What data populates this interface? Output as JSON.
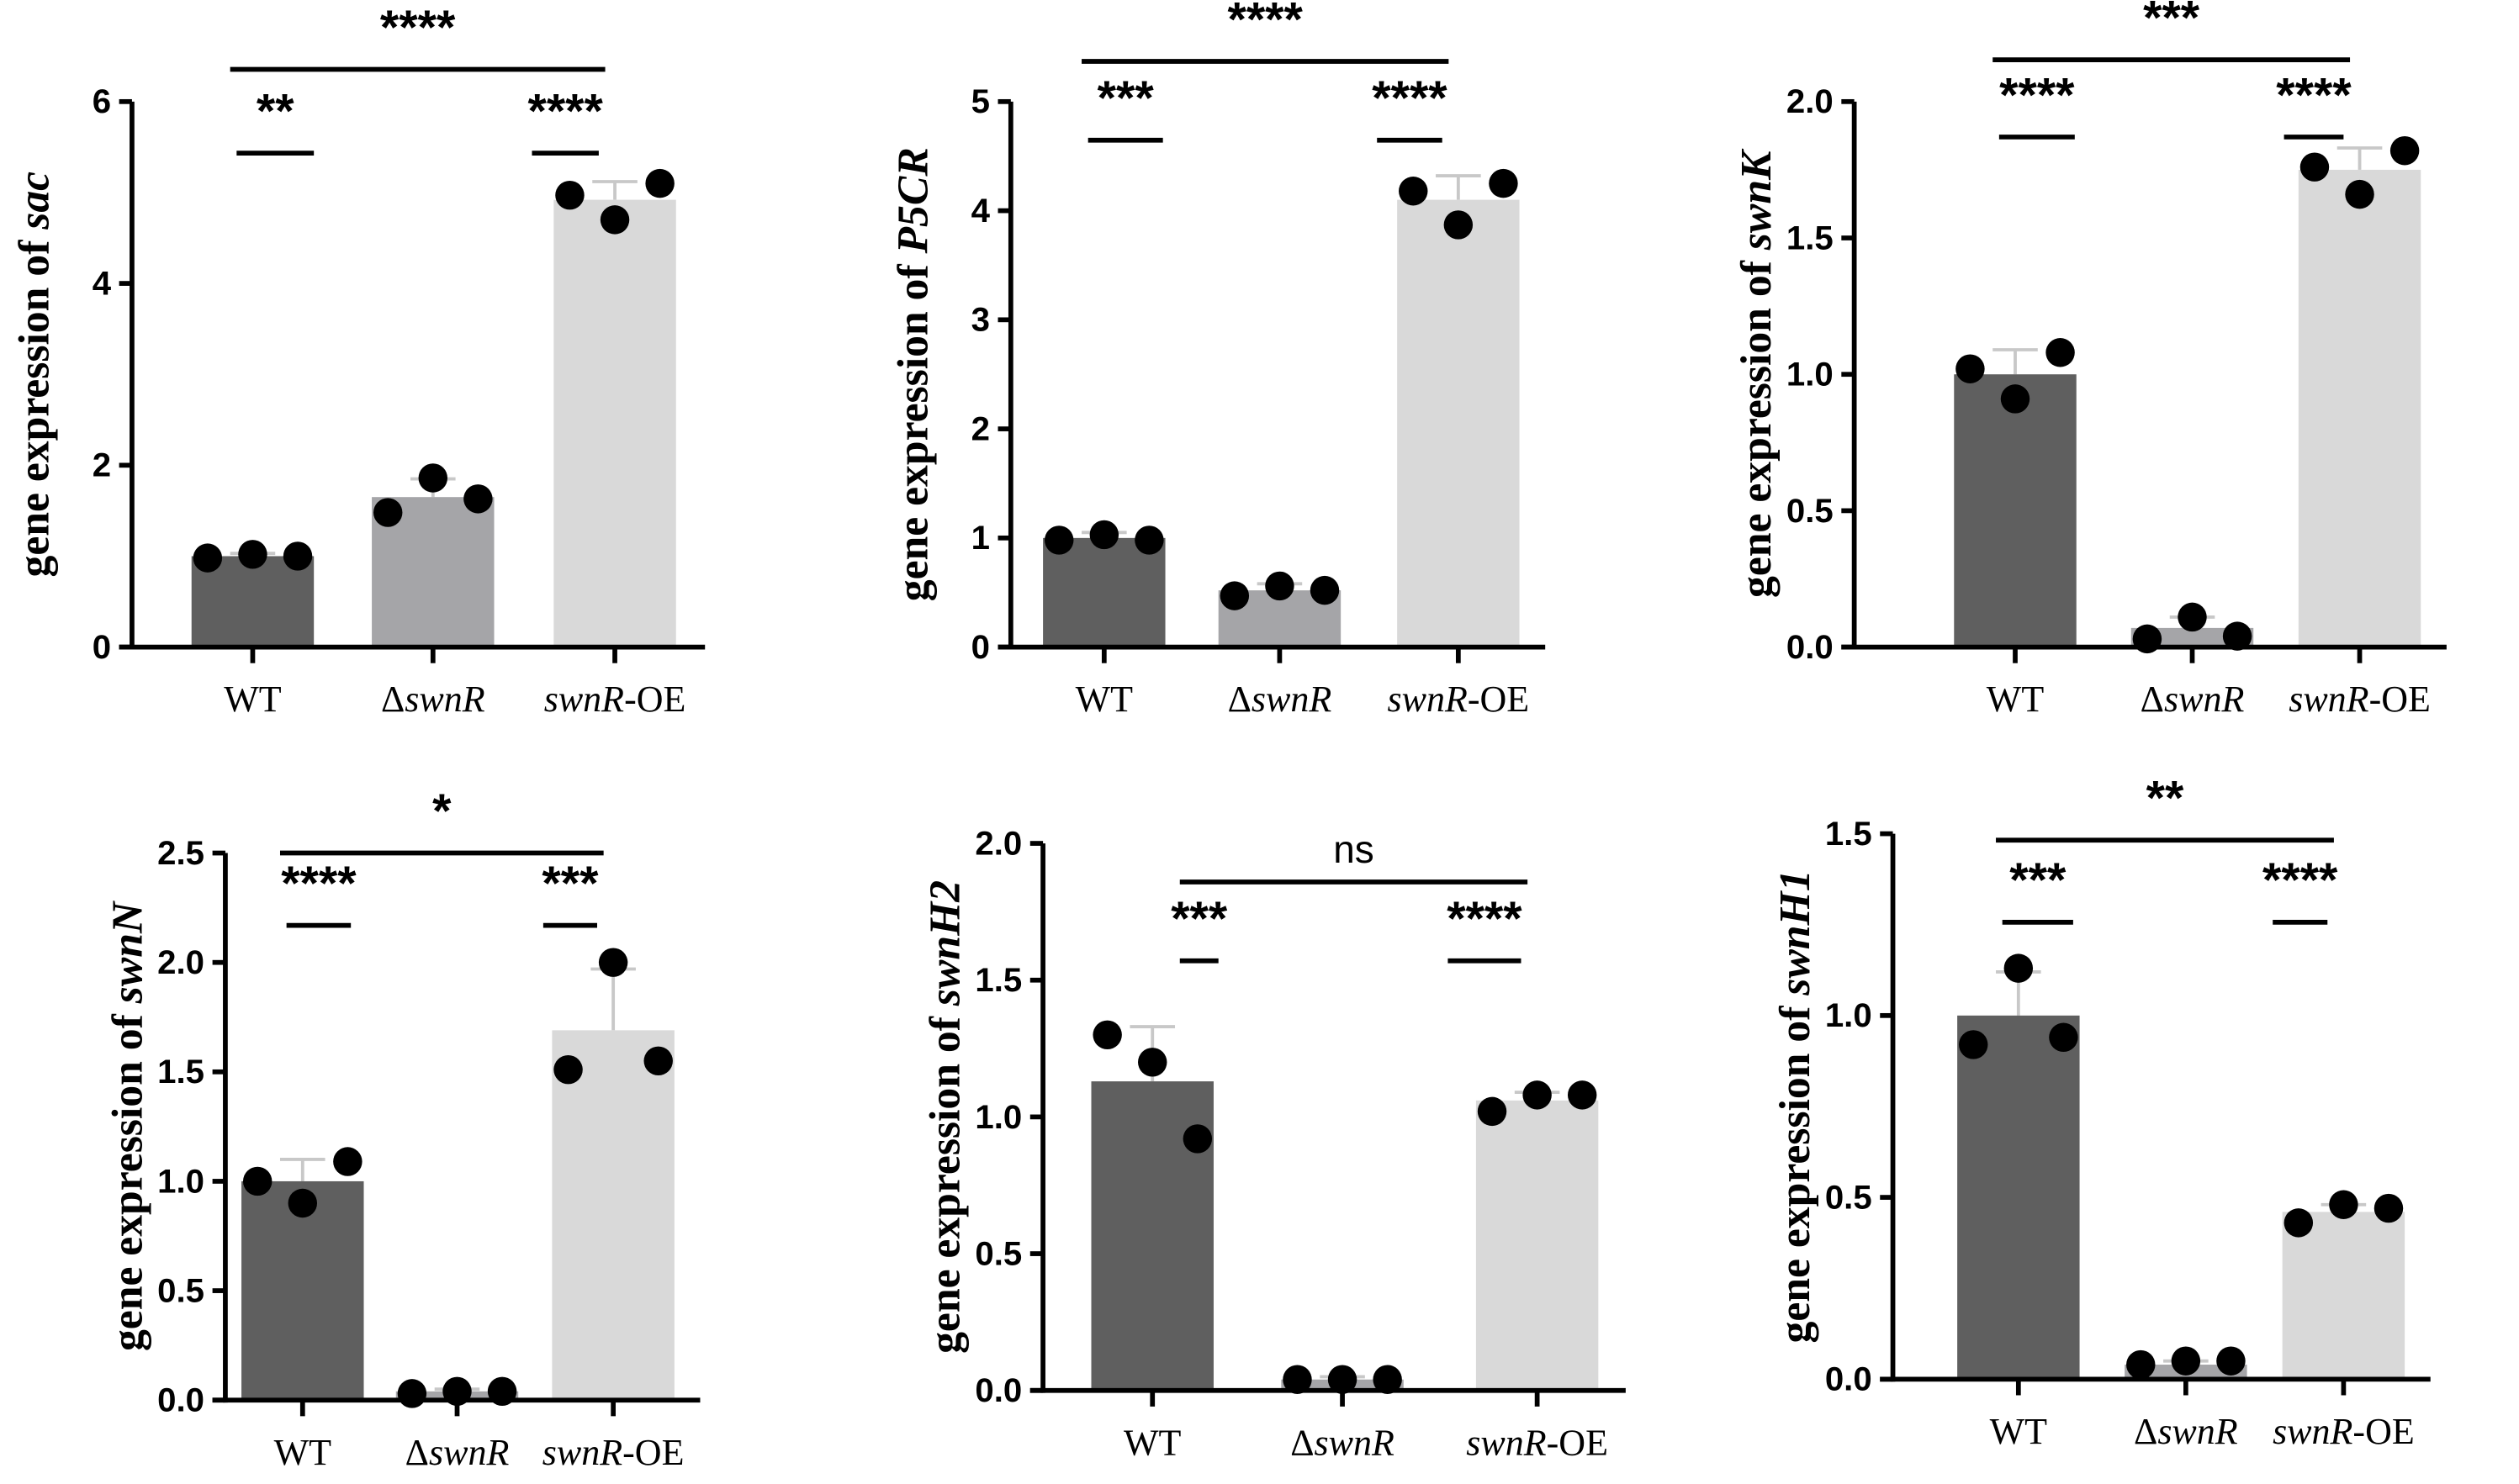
{
  "chart_data": [
    {
      "type": "bar",
      "gene": "sac",
      "ylabel_prefix": "gene expression of ",
      "ylim": [
        0,
        6
      ],
      "yticks": [
        0,
        2,
        4,
        6
      ],
      "categories": [
        "WT",
        "ΔswnR",
        "swnR-OE"
      ],
      "values": [
        1.0,
        1.65,
        4.92
      ],
      "error_upper": [
        1.03,
        1.85,
        5.12
      ],
      "points": [
        [
          0.98,
          1.02,
          1.0
        ],
        [
          1.48,
          1.86,
          1.63
        ],
        [
          4.97,
          4.7,
          5.1
        ]
      ],
      "significance": [
        {
          "pair": [
            0,
            1
          ],
          "label": "**"
        },
        {
          "pair": [
            1,
            2
          ],
          "label": "****"
        },
        {
          "pair": [
            0,
            2
          ],
          "label": "****"
        }
      ]
    },
    {
      "type": "bar",
      "gene": "P5CR",
      "ylabel_prefix": "gene expression of ",
      "ylim": [
        0,
        5
      ],
      "yticks": [
        0,
        1,
        2,
        3,
        4,
        5
      ],
      "categories": [
        "WT",
        "ΔswnR",
        "swnR-OE"
      ],
      "values": [
        1.0,
        0.52,
        4.1
      ],
      "error_upper": [
        1.05,
        0.58,
        4.32
      ],
      "points": [
        [
          0.98,
          1.03,
          0.98
        ],
        [
          0.47,
          0.56,
          0.52
        ],
        [
          4.18,
          3.87,
          4.25
        ]
      ],
      "significance": [
        {
          "pair": [
            0,
            1
          ],
          "label": "***"
        },
        {
          "pair": [
            1,
            2
          ],
          "label": "****"
        },
        {
          "pair": [
            0,
            2
          ],
          "label": "****"
        }
      ]
    },
    {
      "type": "bar",
      "gene": "swnK",
      "ylabel_prefix": "gene expression of ",
      "ylim": [
        0,
        2.0
      ],
      "yticks": [
        "0.0",
        "0.5",
        "1.0",
        "1.5",
        "2.0"
      ],
      "categories": [
        "WT",
        "ΔswnR",
        "swnR-OE"
      ],
      "values": [
        1.0,
        0.07,
        1.75
      ],
      "error_upper": [
        1.09,
        0.11,
        1.83
      ],
      "points": [
        [
          1.02,
          0.91,
          1.08
        ],
        [
          0.03,
          0.11,
          0.04
        ],
        [
          1.76,
          1.66,
          1.82
        ]
      ],
      "significance": [
        {
          "pair": [
            0,
            1
          ],
          "label": "****"
        },
        {
          "pair": [
            1,
            2
          ],
          "label": "****"
        },
        {
          "pair": [
            0,
            2
          ],
          "label": "***"
        }
      ]
    },
    {
      "type": "bar",
      "gene": "swnN",
      "ylabel_prefix": "gene expression of ",
      "ylim": [
        0,
        2.5
      ],
      "yticks": [
        "0.0",
        "0.5",
        "1.0",
        "1.5",
        "2.0",
        "2.5"
      ],
      "categories": [
        "WT",
        "ΔswnR",
        "swnR-OE"
      ],
      "values": [
        1.0,
        0.04,
        1.69
      ],
      "error_upper": [
        1.1,
        0.05,
        1.97
      ],
      "points": [
        [
          1.0,
          0.9,
          1.09
        ],
        [
          0.03,
          0.04,
          0.04
        ],
        [
          1.51,
          2.0,
          1.55
        ]
      ],
      "significance": [
        {
          "pair": [
            0,
            1
          ],
          "label": "****"
        },
        {
          "pair": [
            1,
            2
          ],
          "label": "***"
        },
        {
          "pair": [
            0,
            2
          ],
          "label": "*"
        }
      ]
    },
    {
      "type": "bar",
      "gene": "swnH2",
      "ylabel_prefix": "gene expression of ",
      "ylim": [
        0,
        2.0
      ],
      "yticks": [
        "0.0",
        "0.5",
        "1.0",
        "1.5",
        "2.0"
      ],
      "categories": [
        "WT",
        "ΔswnR",
        "swnR-OE"
      ],
      "values": [
        1.13,
        0.04,
        1.06
      ],
      "error_upper": [
        1.33,
        0.05,
        1.09
      ],
      "points": [
        [
          1.3,
          1.2,
          0.92
        ],
        [
          0.04,
          0.04,
          0.04
        ],
        [
          1.02,
          1.08,
          1.08
        ]
      ],
      "significance": [
        {
          "pair": [
            0,
            1
          ],
          "label": "***"
        },
        {
          "pair": [
            1,
            2
          ],
          "label": "****"
        },
        {
          "pair": [
            0,
            2
          ],
          "label": "ns"
        }
      ]
    },
    {
      "type": "bar",
      "gene": "swnH1",
      "ylabel_prefix": "gene expression of ",
      "ylim": [
        0,
        1.5
      ],
      "yticks": [
        "0.0",
        "0.5",
        "1.0",
        "1.5"
      ],
      "categories": [
        "WT",
        "ΔswnR",
        "swnR-OE"
      ],
      "values": [
        1.0,
        0.04,
        0.46
      ],
      "error_upper": [
        1.12,
        0.05,
        0.48
      ],
      "points": [
        [
          0.92,
          1.13,
          0.94
        ],
        [
          0.04,
          0.05,
          0.05
        ],
        [
          0.43,
          0.48,
          0.47
        ]
      ],
      "significance": [
        {
          "pair": [
            0,
            1
          ],
          "label": "***"
        },
        {
          "pair": [
            1,
            2
          ],
          "label": "****"
        },
        {
          "pair": [
            0,
            2
          ],
          "label": "**"
        }
      ]
    }
  ],
  "colors": {
    "WT": "#5f5f5f",
    "ΔswnR": "#a5a5a8",
    "swnR-OE": "#d9d9d9",
    "error": "#c8c8c8",
    "points": "#000000"
  }
}
